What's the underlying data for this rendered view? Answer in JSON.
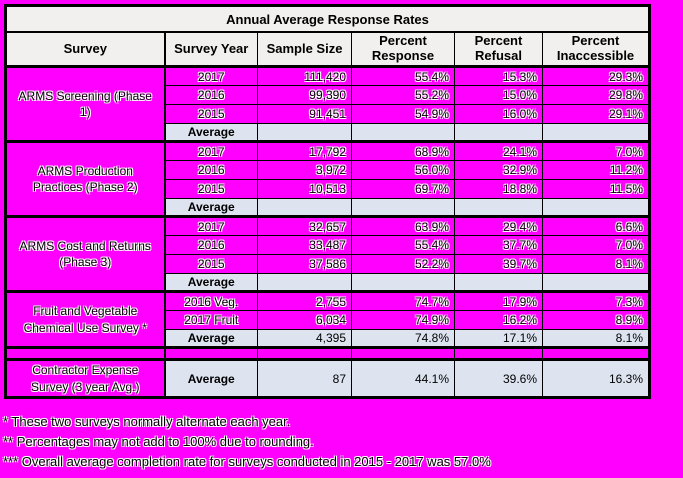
{
  "title": "Annual Average Response Rates",
  "columns": [
    "Survey",
    "Survey Year",
    "Sample Size",
    "Percent Response",
    "Percent Refusal",
    "Percent Inaccessible"
  ],
  "sections": [
    {
      "survey": "ARMS Screening (Phase 1)",
      "rows": [
        [
          "2017",
          "111,420",
          "55.4%",
          "15.3%",
          "29.3%"
        ],
        [
          "2016",
          "99,390",
          "55.2%",
          "15.0%",
          "29.8%"
        ],
        [
          "2015",
          "91,451",
          "54.9%",
          "16.0%",
          "29.1%"
        ]
      ],
      "average": [
        "Average",
        "",
        "",
        "",
        ""
      ]
    },
    {
      "survey": "ARMS Production Practices (Phase 2)",
      "rows": [
        [
          "2017",
          "17,792",
          "68.9%",
          "24.1%",
          "7.0%"
        ],
        [
          "2016",
          "3,972",
          "56.0%",
          "32.9%",
          "11.2%"
        ],
        [
          "2015",
          "10,513",
          "69.7%",
          "18.8%",
          "11.5%"
        ]
      ],
      "average": [
        "Average",
        "",
        "",
        "",
        ""
      ]
    },
    {
      "survey": "ARMS Cost and Returns (Phase 3)",
      "rows": [
        [
          "2017",
          "32,657",
          "63.9%",
          "29.4%",
          "6.6%"
        ],
        [
          "2016",
          "33,487",
          "55.4%",
          "37.7%",
          "7.0%"
        ],
        [
          "2015",
          "37,586",
          "52.2%",
          "39.7%",
          "8.1%"
        ]
      ],
      "average": [
        "Average",
        "",
        "",
        "",
        ""
      ]
    },
    {
      "survey": "Fruit and Vegetable Chemical Use Survey *",
      "rows": [
        [
          "2016 Veg.",
          "2,755",
          "74.7%",
          "17.9%",
          "7.3%"
        ],
        [
          "2017 Fruit",
          "6,034",
          "74.9%",
          "16.2%",
          "8.9%"
        ]
      ],
      "average": [
        "Average",
        "4,395",
        "74.8%",
        "17.1%",
        "8.1%"
      ]
    }
  ],
  "contractor": {
    "survey": "Contractor Expense Survey (3 year Avg.)",
    "average": [
      "Average",
      "87",
      "44.1%",
      "39.6%",
      "16.3%"
    ]
  },
  "footnotes": [
    "* These two surveys normally alternate each year.",
    "** Percentages may not add to 100% due to rounding.",
    "*** Overall average completion rate for surveys conducted in 2015 - 2017 was 57.0%"
  ],
  "colors": {
    "page_bg": "#FF00FF",
    "header_bg": "#F1F0EE",
    "average_bg": "#DDE4F0",
    "border": "#000000"
  }
}
